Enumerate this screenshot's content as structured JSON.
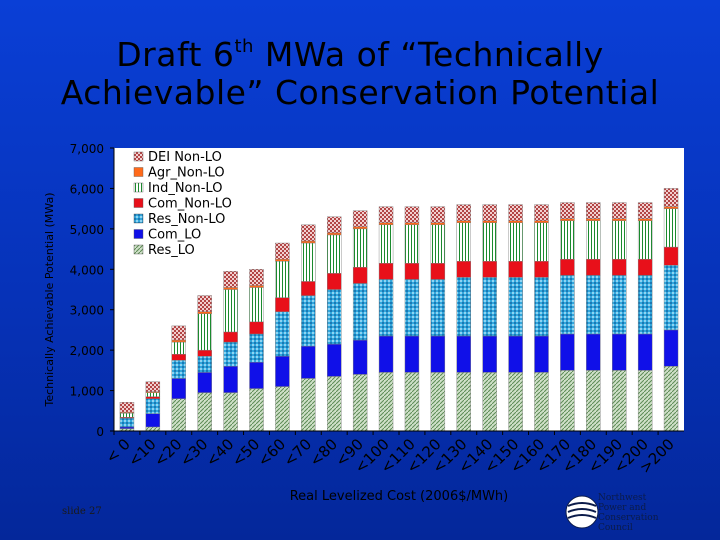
{
  "slide": {
    "title_pre": "Draft 6",
    "title_sup": "th",
    "title_post": " MWa of “Technically",
    "title_line2": "Achievable” Conservation Potential",
    "slide_number": "slide 27",
    "org_name": [
      "Northwest",
      "Power and",
      "Conservation",
      "Council"
    ]
  },
  "chart_data": {
    "type": "bar",
    "stacked": true,
    "xlabel": "Real Levelized Cost (2006$/MWh)",
    "ylabel": "Technically Achievable Potential (MWa)",
    "ylim": [
      0,
      7000
    ],
    "yticks": [
      0,
      1000,
      2000,
      3000,
      4000,
      5000,
      6000,
      7000
    ],
    "ytick_labels": [
      "0",
      "1,000",
      "2,000",
      "3,000",
      "4,000",
      "5,000",
      "6,000",
      "7,000"
    ],
    "legend_position": "top-left",
    "categories": [
      "< 0",
      "<10",
      "<20",
      "<30",
      "<40",
      "<50",
      "<60",
      "<70",
      "<80",
      "<90",
      "<100",
      "<110",
      "<120",
      "<130",
      "<140",
      "<150",
      "<160",
      "<170",
      "<180",
      "<190",
      "<200",
      ">200"
    ],
    "series": [
      {
        "name": "Res_LO",
        "color": "#a8c6a0",
        "pattern": "res_lo",
        "values": [
          60,
          100,
          800,
          950,
          950,
          1050,
          1100,
          1300,
          1350,
          1400,
          1450,
          1450,
          1450,
          1450,
          1450,
          1450,
          1450,
          1500,
          1500,
          1500,
          1500,
          1600
        ]
      },
      {
        "name": "Com_LO",
        "color": "#1010e8",
        "pattern": "solid",
        "values": [
          40,
          330,
          500,
          500,
          650,
          650,
          750,
          800,
          800,
          850,
          900,
          900,
          900,
          900,
          900,
          900,
          900,
          900,
          900,
          900,
          900,
          900
        ]
      },
      {
        "name": "Res_Non-LO",
        "color": "#31a7dc",
        "pattern": "res_nonlo",
        "values": [
          220,
          370,
          450,
          400,
          600,
          700,
          1100,
          1250,
          1350,
          1400,
          1400,
          1400,
          1400,
          1450,
          1450,
          1450,
          1450,
          1450,
          1450,
          1450,
          1450,
          1600
        ]
      },
      {
        "name": "Com_Non-LO",
        "color": "#e8101a",
        "pattern": "solid",
        "values": [
          20,
          50,
          150,
          150,
          250,
          300,
          350,
          350,
          400,
          400,
          400,
          400,
          400,
          400,
          400,
          400,
          400,
          400,
          400,
          400,
          400,
          450
        ]
      },
      {
        "name": "Ind_Non-LO",
        "color": "#ffffff",
        "pattern": "ind_nonlo",
        "values": [
          100,
          100,
          300,
          900,
          1050,
          850,
          900,
          950,
          950,
          950,
          950,
          950,
          950,
          950,
          950,
          950,
          950,
          950,
          950,
          950,
          950,
          950
        ]
      },
      {
        "name": "Agr_Non-LO",
        "color": "#ff6a1a",
        "pattern": "solid",
        "values": [
          20,
          20,
          50,
          50,
          50,
          50,
          50,
          50,
          50,
          50,
          50,
          50,
          50,
          50,
          50,
          50,
          50,
          50,
          50,
          50,
          50,
          50
        ]
      },
      {
        "name": "DEI  Non-LO",
        "color": "#e8b4b4",
        "pattern": "dei",
        "values": [
          250,
          250,
          350,
          400,
          400,
          400,
          400,
          400,
          400,
          400,
          400,
          400,
          400,
          400,
          400,
          400,
          400,
          400,
          400,
          400,
          400,
          450
        ]
      }
    ]
  }
}
